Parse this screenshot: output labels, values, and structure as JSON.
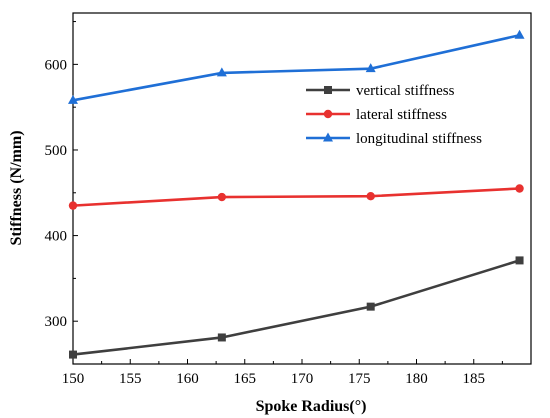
{
  "chart_data": {
    "type": "line",
    "title": "",
    "xlabel": "Spoke Radius(°)",
    "ylabel": "Stiffness (N/mm)",
    "xlim": [
      150,
      190
    ],
    "ylim": [
      250,
      660
    ],
    "xticks": [
      150,
      155,
      160,
      165,
      170,
      175,
      180,
      185
    ],
    "yticks": [
      300,
      400,
      500,
      600
    ],
    "grid": false,
    "legend_position": "right",
    "x": [
      150,
      163,
      176,
      189
    ],
    "series": [
      {
        "name": "vertical stiffness",
        "color": "#3f3f3f",
        "marker": "square",
        "values": [
          261,
          281,
          317,
          371
        ]
      },
      {
        "name": "lateral stiffness",
        "color": "#e8312f",
        "marker": "circle",
        "values": [
          435,
          445,
          446,
          455
        ]
      },
      {
        "name": "longitudinal stiffness",
        "color": "#1f6fd6",
        "marker": "triangle",
        "values": [
          558,
          590,
          595,
          634
        ]
      }
    ]
  }
}
